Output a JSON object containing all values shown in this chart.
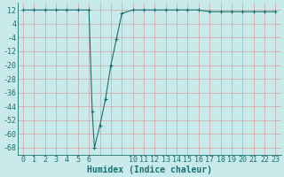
{
  "x_values": [
    0,
    1,
    2,
    3,
    4,
    5,
    6,
    6.3,
    6.5,
    7,
    7.5,
    8,
    8.5,
    9,
    10,
    11,
    12,
    13,
    14,
    15,
    16,
    17,
    18,
    19,
    20,
    21,
    22,
    23
  ],
  "y_values": [
    12,
    12,
    12,
    12,
    12,
    12,
    12,
    -47,
    -68,
    -55,
    -40,
    -20,
    -5,
    10,
    12,
    12,
    12,
    12,
    12,
    12,
    12,
    11,
    11,
    11,
    11,
    11,
    11,
    11
  ],
  "bg_color": "#c8eaea",
  "grid_color": "#d4a0a0",
  "line_color": "#1a7070",
  "marker_color": "#1a7070",
  "xlabel": "Humidex (Indice chaleur)",
  "xlabel_fontsize": 7,
  "ytick_labels": [
    "12",
    "4",
    "-4",
    "-12",
    "-20",
    "-28",
    "-36",
    "-44",
    "-52",
    "-60",
    "-68"
  ],
  "ytick_vals": [
    12,
    4,
    -4,
    -12,
    -20,
    -28,
    -36,
    -44,
    -52,
    -60,
    -68
  ],
  "xtick_labels": [
    "0",
    "1",
    "2",
    "3",
    "4",
    "5",
    "6",
    "10",
    "11",
    "12",
    "13",
    "14",
    "15",
    "16",
    "17",
    "18",
    "19",
    "20",
    "21",
    "22",
    "23"
  ],
  "xtick_vals": [
    0,
    1,
    2,
    3,
    4,
    5,
    6,
    10,
    11,
    12,
    13,
    14,
    15,
    16,
    17,
    18,
    19,
    20,
    21,
    22,
    23
  ],
  "all_x_grid": [
    0,
    1,
    2,
    3,
    4,
    5,
    6,
    7,
    8,
    9,
    10,
    11,
    12,
    13,
    14,
    15,
    16,
    17,
    18,
    19,
    20,
    21,
    22,
    23
  ],
  "xlim": [
    -0.5,
    23.5
  ],
  "ylim": [
    -72,
    16
  ],
  "tick_fontsize": 6
}
